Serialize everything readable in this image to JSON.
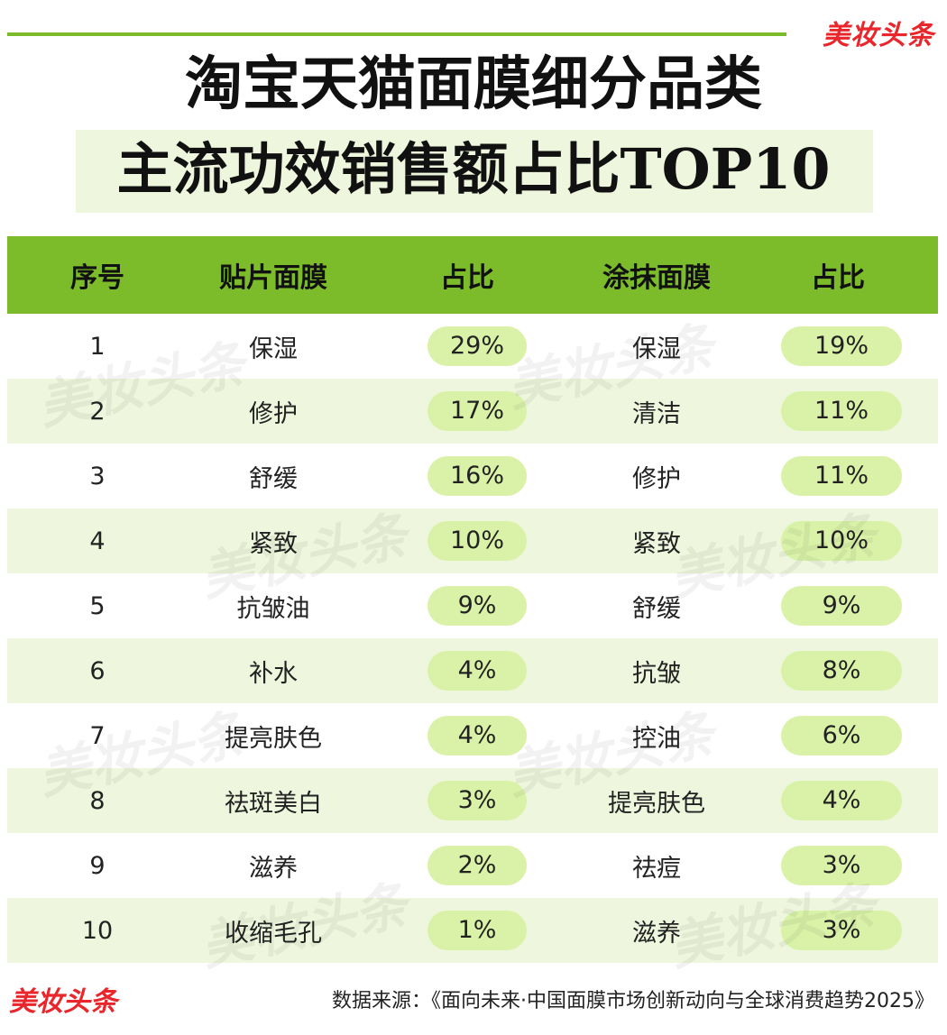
{
  "brand": "美妆头条",
  "title": "淘宝天猫面膜细分品类",
  "subtitle": "主流功效销售额占比TOP10",
  "colors": {
    "accent": "#7cbc2a",
    "row_alt": "#eef7dd",
    "pill": "#d9f2a8",
    "brand": "#e8262b"
  },
  "table": {
    "headers": [
      "序号",
      "贴片面膜",
      "占比",
      "涂抹面膜",
      "占比"
    ],
    "rows": [
      {
        "rank": "1",
        "sheet": "保湿",
        "sheet_share": "29%",
        "cream": "保湿",
        "cream_share": "19%"
      },
      {
        "rank": "2",
        "sheet": "修护",
        "sheet_share": "17%",
        "cream": "清洁",
        "cream_share": "11%"
      },
      {
        "rank": "3",
        "sheet": "舒缓",
        "sheet_share": "16%",
        "cream": "修护",
        "cream_share": "11%"
      },
      {
        "rank": "4",
        "sheet": "紧致",
        "sheet_share": "10%",
        "cream": "紧致",
        "cream_share": "10%"
      },
      {
        "rank": "5",
        "sheet": "抗皱油",
        "sheet_share": "9%",
        "cream": "舒缓",
        "cream_share": "9%"
      },
      {
        "rank": "6",
        "sheet": "补水",
        "sheet_share": "4%",
        "cream": "抗皱",
        "cream_share": "8%"
      },
      {
        "rank": "7",
        "sheet": "提亮肤色",
        "sheet_share": "4%",
        "cream": "控油",
        "cream_share": "6%"
      },
      {
        "rank": "8",
        "sheet": "祛斑美白",
        "sheet_share": "3%",
        "cream": "提亮肤色",
        "cream_share": "4%"
      },
      {
        "rank": "9",
        "sheet": "滋养",
        "sheet_share": "2%",
        "cream": "祛痘",
        "cream_share": "3%"
      },
      {
        "rank": "10",
        "sheet": "收缩毛孔",
        "sheet_share": "1%",
        "cream": "滋养",
        "cream_share": "3%"
      }
    ]
  },
  "footer": {
    "brand": "美妆头条",
    "source": "数据来源：《面向未来·中国面膜市场创新动向与全球消费趋势2025》"
  }
}
